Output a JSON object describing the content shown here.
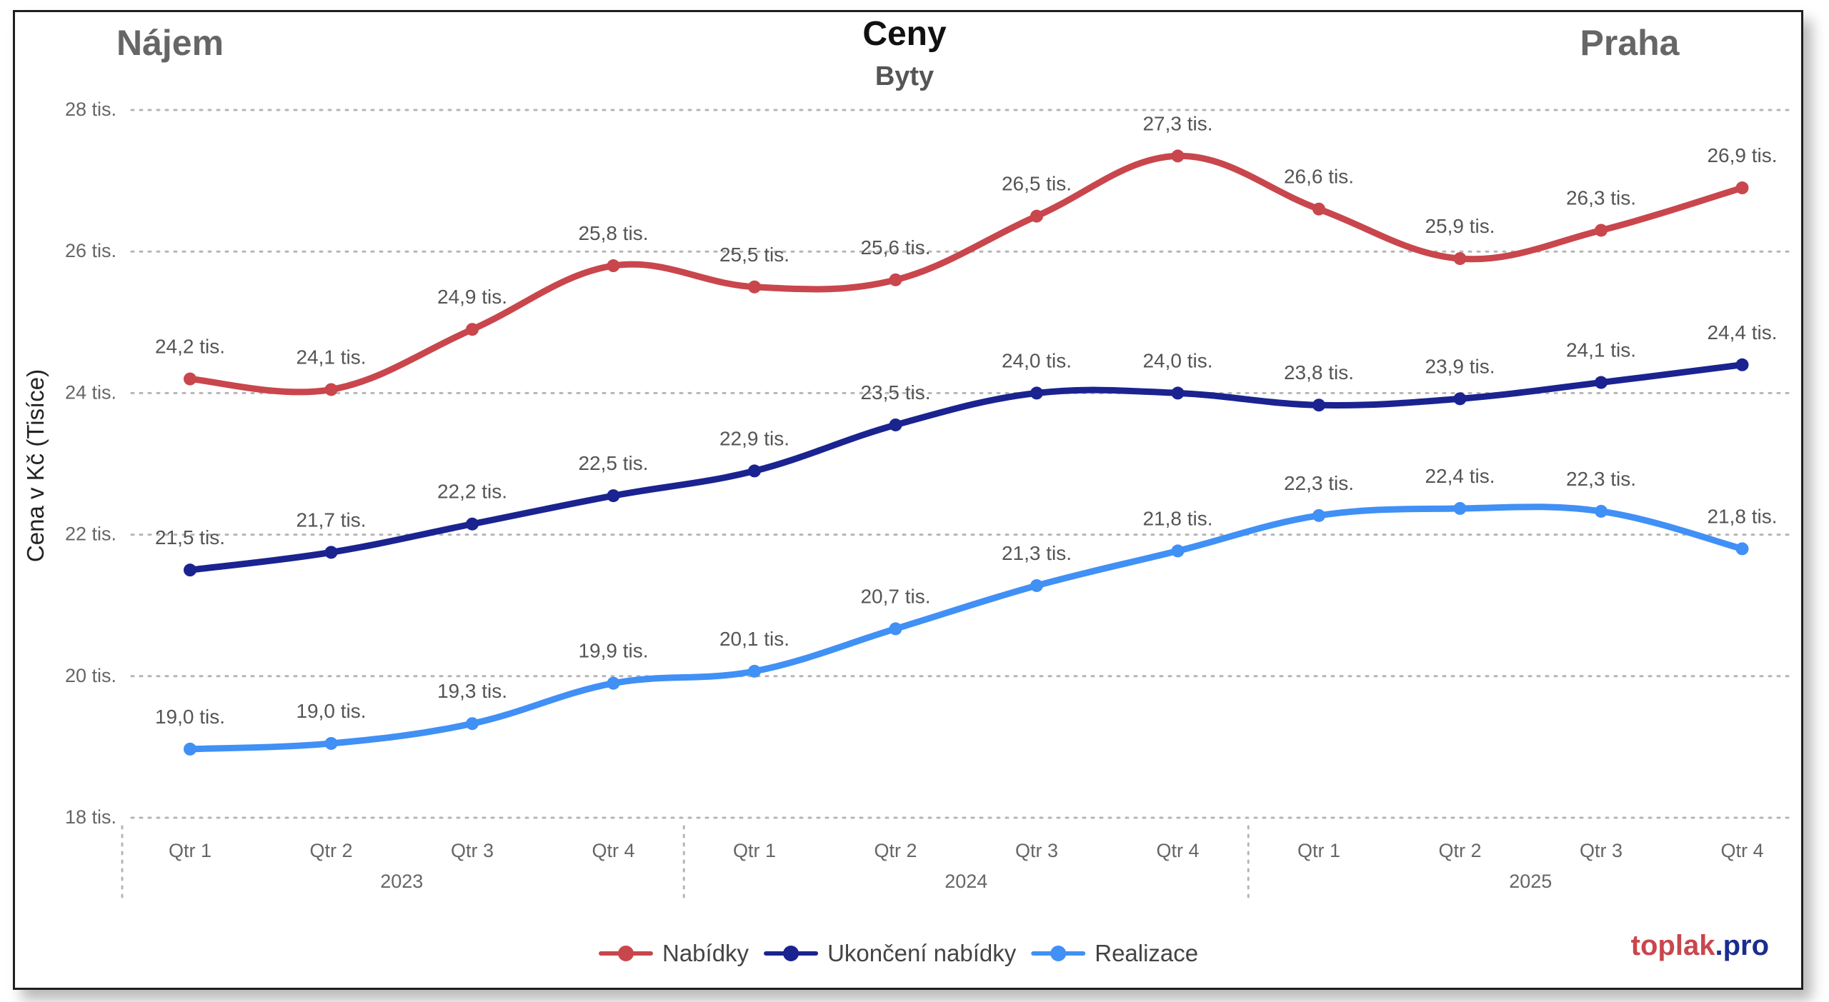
{
  "header": {
    "left": "Nájem",
    "title": "Ceny",
    "subtitle": "Byty",
    "right": "Praha"
  },
  "brand": {
    "part1": "toplak",
    "part2": ".pro",
    "color1": "#c9464d",
    "color2": "#1a2c8f"
  },
  "chart_data": {
    "type": "line",
    "ylabel": "Cena v Kč (Tisíce)",
    "ylim": [
      18,
      28
    ],
    "yticks": [
      18,
      20,
      22,
      24,
      26,
      28
    ],
    "ytick_labels": [
      "18 tis.",
      "20 tis.",
      "22 tis.",
      "24 tis.",
      "26 tis.",
      "28 tis."
    ],
    "grid": true,
    "legend_position": "bottom-center",
    "categories": [
      "Qtr 1",
      "Qtr 2",
      "Qtr 3",
      "Qtr 4",
      "Qtr 1",
      "Qtr 2",
      "Qtr 3",
      "Qtr 4",
      "Qtr 1",
      "Qtr 2",
      "Qtr 3",
      "Qtr 4"
    ],
    "years": [
      "2023",
      "2024",
      "2025"
    ],
    "series": [
      {
        "name": "Nabídky",
        "color": "#c9464d",
        "values": [
          24.2,
          24.05,
          24.9,
          25.8,
          25.5,
          25.6,
          26.5,
          27.35,
          26.6,
          25.9,
          26.3,
          26.9
        ],
        "labels": [
          "24,2 tis.",
          "24,1 tis.",
          "24,9 tis.",
          "25,8 tis.",
          "25,5 tis.",
          "25,6 tis.",
          "26,5 tis.",
          "27,3 tis.",
          "26,6 tis.",
          "25,9 tis.",
          "26,3 tis.",
          "26,9 tis."
        ]
      },
      {
        "name": "Ukončení nabídky",
        "color": "#1a2390",
        "values": [
          21.5,
          21.75,
          22.15,
          22.55,
          22.9,
          23.55,
          24.0,
          24.0,
          23.83,
          23.92,
          24.15,
          24.4
        ],
        "labels": [
          "21,5 tis.",
          "21,7 tis.",
          "22,2 tis.",
          "22,5 tis.",
          "22,9 tis.",
          "23,5 tis.",
          "24,0 tis.",
          "24,0 tis.",
          "23,8 tis.",
          "23,9 tis.",
          "24,1 tis.",
          "24,4 tis."
        ]
      },
      {
        "name": "Realizace",
        "color": "#4090f5",
        "values": [
          18.97,
          19.05,
          19.33,
          19.9,
          20.07,
          20.67,
          21.28,
          21.77,
          22.27,
          22.37,
          22.33,
          21.8
        ],
        "labels": [
          "19,0 tis.",
          "19,0 tis.",
          "19,3 tis.",
          "19,9 tis.",
          "20,1 tis.",
          "20,7 tis.",
          "21,3 tis.",
          "21,8 tis.",
          "22,3 tis.",
          "22,4 tis.",
          "22,3 tis.",
          "21,8 tis."
        ]
      }
    ]
  }
}
